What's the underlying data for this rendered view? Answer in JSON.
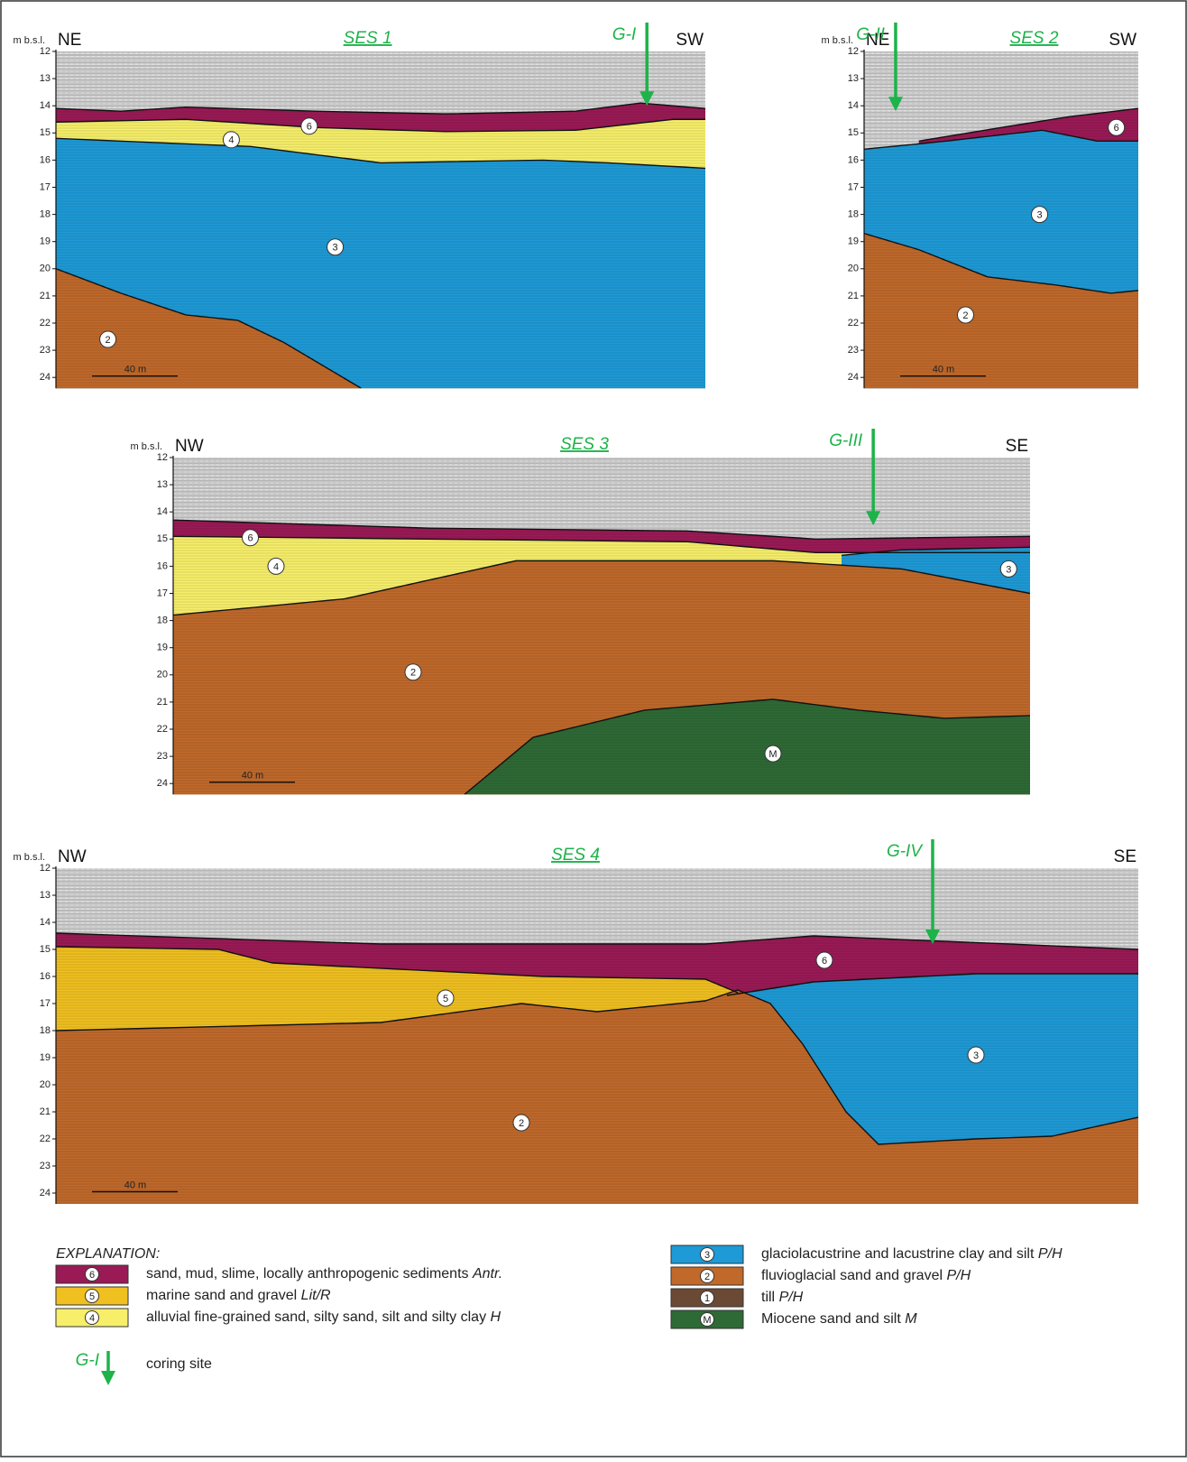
{
  "panels": [
    {
      "title": "SES 1",
      "left_dir": "NE",
      "right_dir": "SW",
      "depth_label": "m b.s.l.",
      "depth_ticks": [
        12,
        13,
        14,
        15,
        16,
        17,
        18,
        19,
        20,
        21,
        22,
        23,
        24
      ],
      "scale": "40 m",
      "core": "G-I",
      "units": [
        "6",
        "4",
        "3",
        "2"
      ]
    },
    {
      "title": "SES 2",
      "left_dir": "NE",
      "right_dir": "SW",
      "depth_label": "m b.s.l.",
      "depth_ticks": [
        12,
        13,
        14,
        15,
        16,
        17,
        18,
        19,
        20,
        21,
        22,
        23,
        24
      ],
      "scale": "40 m",
      "core": "G-II",
      "units": [
        "6",
        "3",
        "2"
      ]
    },
    {
      "title": "SES 3",
      "left_dir": "NW",
      "right_dir": "SE",
      "depth_label": "m b.s.l.",
      "depth_ticks": [
        12,
        13,
        14,
        15,
        16,
        17,
        18,
        19,
        20,
        21,
        22,
        23,
        24
      ],
      "scale": "40 m",
      "core": "G-III",
      "units": [
        "6",
        "4",
        "3",
        "2",
        "M"
      ]
    },
    {
      "title": "SES 4",
      "left_dir": "NW",
      "right_dir": "SE",
      "depth_label": "m b.s.l.",
      "depth_ticks": [
        12,
        13,
        14,
        15,
        16,
        17,
        18,
        19,
        20,
        21,
        22,
        23,
        24
      ],
      "scale": "40 m",
      "core": "G-IV",
      "units": [
        "6",
        "5",
        "3",
        "2"
      ]
    }
  ],
  "legend": {
    "title": "EXPLANATION:",
    "items": [
      {
        "symbol": "6",
        "text": "sand, mud, slime, locally anthropogenic sediments",
        "code": "Antr.",
        "color": "#9a1a55"
      },
      {
        "symbol": "5",
        "text": "marine sand and gravel",
        "code": "Lit/R",
        "color": "#f0c020"
      },
      {
        "symbol": "4",
        "text": "alluvial fine-grained sand, silty sand, silt and silty clay",
        "code": "H",
        "color": "#f7ef6a"
      },
      {
        "symbol": "3",
        "text": "glaciolacustrine and lacustrine clay and silt",
        "code": "P/H",
        "color": "#1e9ad6"
      },
      {
        "symbol": "2",
        "text": "fluvioglacial sand and gravel",
        "code": "P/H",
        "color": "#c0692b"
      },
      {
        "symbol": "1",
        "text": "till",
        "code": "P/H",
        "color": "#6b4a35"
      },
      {
        "symbol": "M",
        "text": "Miocene sand and silt",
        "code": "M",
        "color": "#2e6a35"
      }
    ],
    "coring": {
      "symbol": "G-I",
      "text": "coring site"
    }
  }
}
